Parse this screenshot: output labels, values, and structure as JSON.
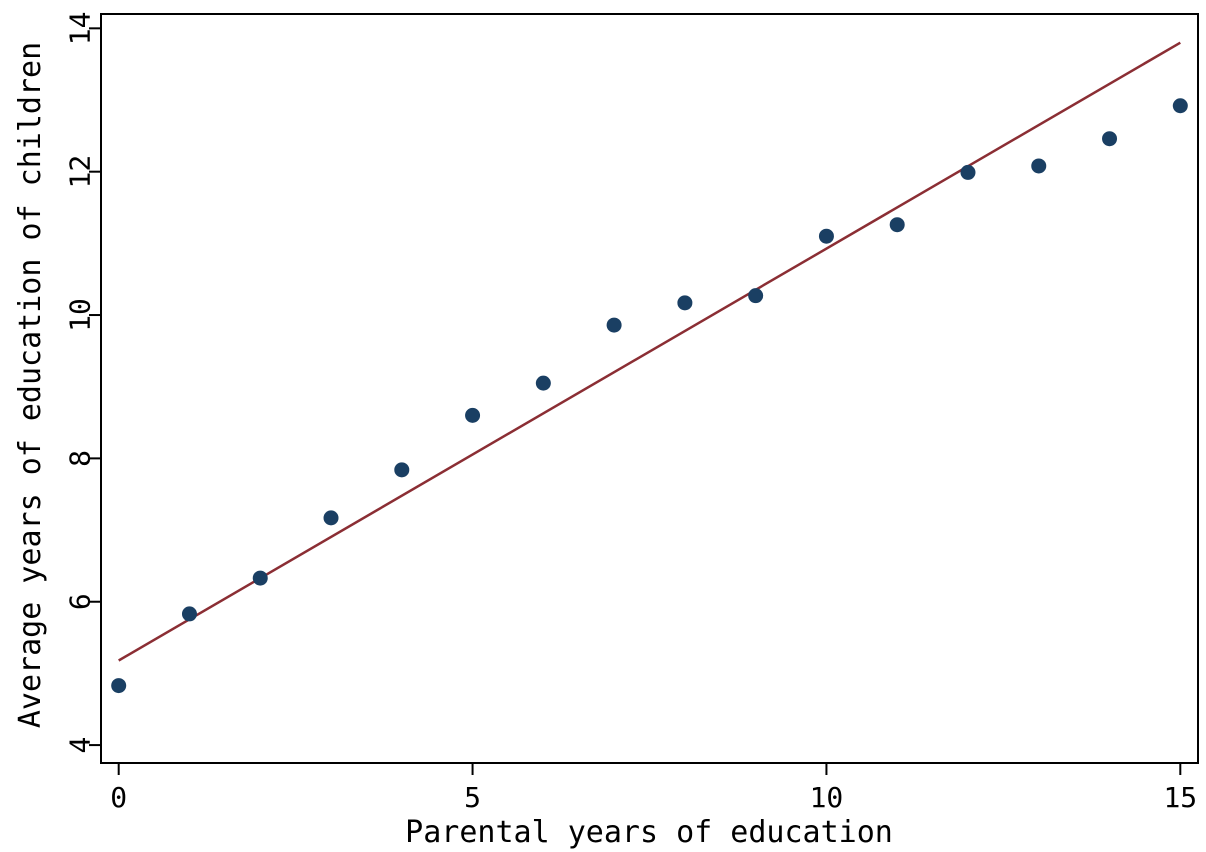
{
  "chart_data": {
    "type": "scatter",
    "title": "",
    "xlabel": "Parental years of education",
    "ylabel": "Average years of education of children",
    "xlim": [
      -0.25,
      15.25
    ],
    "ylim": [
      3.75,
      14.2
    ],
    "xticks": [
      0,
      5,
      10,
      15
    ],
    "yticks": [
      4,
      6,
      8,
      10,
      12,
      14
    ],
    "xtick_labels": [
      "0",
      "5",
      "10",
      "15"
    ],
    "ytick_labels": [
      "4",
      "6",
      "8",
      "10",
      "12",
      "14"
    ],
    "grid": false,
    "legend": "none",
    "series": [
      {
        "type": "scatter",
        "color": "#1a3f63",
        "x": [
          0,
          1,
          2,
          3,
          4,
          5,
          6,
          7,
          8,
          9,
          10,
          11,
          12,
          13,
          14,
          15
        ],
        "y": [
          4.83,
          5.83,
          6.33,
          7.17,
          7.84,
          8.6,
          9.05,
          9.86,
          10.17,
          10.27,
          11.1,
          11.26,
          11.99,
          12.08,
          12.46,
          12.92
        ]
      },
      {
        "type": "line",
        "color": "#8b2e34",
        "x": [
          0,
          15
        ],
        "y": [
          5.18,
          13.8
        ]
      }
    ]
  }
}
